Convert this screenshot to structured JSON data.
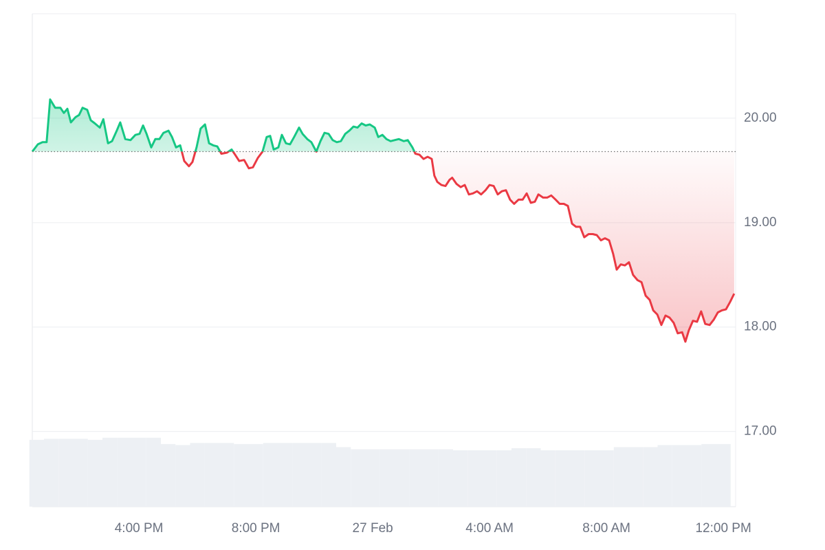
{
  "chart_data": {
    "type": "price",
    "baseline": 19.68,
    "up_color": "#16c784",
    "down_color": "#ea3943",
    "volume_color": "#edf0f4",
    "grid": true,
    "xlim": [
      12.35,
      36.42
    ],
    "ylim": [
      16.28,
      21.0
    ],
    "xticks": [
      {
        "value": 16,
        "label": "4:00 PM"
      },
      {
        "value": 20,
        "label": "8:00 PM"
      },
      {
        "value": 24,
        "label": "27 Feb"
      },
      {
        "value": 28,
        "label": "4:00 AM"
      },
      {
        "value": 32,
        "label": "8:00 AM"
      },
      {
        "value": 36,
        "label": "12:00 PM"
      }
    ],
    "yticks": [
      {
        "value": 17,
        "label": "17.00"
      },
      {
        "value": 18,
        "label": "18.00"
      },
      {
        "value": 19,
        "label": "19.00"
      },
      {
        "value": 20,
        "label": "20.00"
      }
    ],
    "x": [
      12.35,
      12.54,
      12.7,
      12.84,
      12.96,
      13.13,
      13.31,
      13.43,
      13.55,
      13.67,
      13.83,
      13.95,
      14.07,
      14.23,
      14.35,
      14.49,
      14.66,
      14.78,
      14.94,
      15.08,
      15.24,
      15.36,
      15.53,
      15.71,
      15.88,
      16.02,
      16.14,
      16.26,
      16.42,
      16.56,
      16.7,
      16.84,
      17.01,
      17.13,
      17.27,
      17.41,
      17.55,
      17.71,
      17.83,
      17.97,
      18.11,
      18.26,
      18.4,
      18.54,
      18.68,
      18.82,
      19.01,
      19.17,
      19.29,
      19.43,
      19.6,
      19.76,
      19.9,
      20.07,
      20.23,
      20.37,
      20.49,
      20.61,
      20.77,
      20.89,
      21.03,
      21.17,
      21.31,
      21.48,
      21.6,
      21.76,
      21.9,
      22.07,
      22.21,
      22.35,
      22.49,
      22.63,
      22.77,
      22.91,
      23.06,
      23.2,
      23.34,
      23.48,
      23.62,
      23.76,
      23.9,
      24.07,
      24.19,
      24.33,
      24.47,
      24.61,
      24.75,
      24.89,
      25.06,
      25.2,
      25.36,
      25.46,
      25.6,
      25.74,
      25.88,
      26.02,
      26.11,
      26.21,
      26.35,
      26.49,
      26.63,
      26.72,
      26.87,
      27.01,
      27.15,
      27.29,
      27.43,
      27.57,
      27.71,
      27.86,
      28.0,
      28.14,
      28.28,
      28.42,
      28.56,
      28.7,
      28.84,
      28.99,
      29.13,
      29.27,
      29.41,
      29.55,
      29.67,
      29.83,
      29.97,
      30.11,
      30.26,
      30.4,
      30.54,
      30.68,
      30.82,
      30.96,
      31.1,
      31.24,
      31.39,
      31.53,
      31.67,
      31.81,
      31.95,
      32.09,
      32.23,
      32.35,
      32.49,
      32.63,
      32.77,
      32.91,
      33.06,
      33.2,
      33.34,
      33.48,
      33.6,
      33.74,
      33.88,
      34.02,
      34.16,
      34.3,
      34.44,
      34.59,
      34.7,
      34.82,
      34.96,
      35.1,
      35.24,
      35.38,
      35.53,
      35.67,
      35.81,
      35.95,
      36.09,
      36.23,
      36.37
    ],
    "values": [
      19.68,
      19.75,
      19.77,
      19.77,
      20.18,
      20.1,
      20.1,
      20.05,
      20.09,
      19.96,
      20.01,
      20.03,
      20.1,
      20.08,
      19.98,
      19.95,
      19.91,
      19.99,
      19.76,
      19.78,
      19.88,
      19.96,
      19.8,
      19.79,
      19.84,
      19.85,
      19.93,
      19.85,
      19.72,
      19.8,
      19.8,
      19.86,
      19.88,
      19.82,
      19.72,
      19.74,
      19.59,
      19.54,
      19.58,
      19.72,
      19.9,
      19.94,
      19.76,
      19.74,
      19.73,
      19.66,
      19.67,
      19.7,
      19.65,
      19.59,
      19.6,
      19.52,
      19.53,
      19.62,
      19.68,
      19.82,
      19.83,
      19.7,
      19.72,
      19.84,
      19.76,
      19.75,
      19.82,
      19.91,
      19.85,
      19.8,
      19.77,
      19.68,
      19.78,
      19.86,
      19.85,
      19.79,
      19.77,
      19.78,
      19.85,
      19.88,
      19.92,
      19.91,
      19.95,
      19.93,
      19.94,
      19.91,
      19.82,
      19.84,
      19.8,
      19.78,
      19.79,
      19.8,
      19.78,
      19.79,
      19.72,
      19.66,
      19.65,
      19.61,
      19.63,
      19.61,
      19.45,
      19.39,
      19.36,
      19.35,
      19.41,
      19.43,
      19.37,
      19.34,
      19.36,
      19.27,
      19.28,
      19.3,
      19.27,
      19.31,
      19.36,
      19.35,
      19.27,
      19.3,
      19.31,
      19.22,
      19.18,
      19.22,
      19.22,
      19.28,
      19.19,
      19.2,
      19.27,
      19.24,
      19.24,
      19.26,
      19.22,
      19.18,
      19.18,
      19.16,
      18.99,
      18.96,
      18.96,
      18.86,
      18.89,
      18.89,
      18.88,
      18.83,
      18.85,
      18.83,
      18.7,
      18.55,
      18.6,
      18.59,
      18.62,
      18.5,
      18.45,
      18.43,
      18.3,
      18.26,
      18.16,
      18.12,
      18.02,
      18.11,
      18.09,
      18.04,
      17.94,
      17.95,
      17.86,
      17.97,
      18.06,
      18.05,
      18.15,
      18.03,
      18.02,
      18.07,
      18.14,
      18.16,
      18.17,
      18.24,
      18.32
    ],
    "volume": {
      "x": [
        12.5,
        13.0,
        13.5,
        14.0,
        14.5,
        15.0,
        15.5,
        16.0,
        16.5,
        17.0,
        17.5,
        18.0,
        18.5,
        19.0,
        19.5,
        20.0,
        20.5,
        21.0,
        21.5,
        22.0,
        22.5,
        23.0,
        23.5,
        24.0,
        24.5,
        25.0,
        25.5,
        26.0,
        26.5,
        27.0,
        27.5,
        28.0,
        28.5,
        29.0,
        29.5,
        30.0,
        30.5,
        31.0,
        31.5,
        32.0,
        32.5,
        33.0,
        33.5,
        34.0,
        34.5,
        35.0,
        35.5,
        36.0
      ],
      "values": [
        0.64,
        0.65,
        0.65,
        0.65,
        0.64,
        0.66,
        0.66,
        0.66,
        0.66,
        0.6,
        0.59,
        0.61,
        0.61,
        0.61,
        0.6,
        0.6,
        0.61,
        0.61,
        0.61,
        0.61,
        0.61,
        0.57,
        0.55,
        0.55,
        0.55,
        0.55,
        0.55,
        0.55,
        0.55,
        0.54,
        0.54,
        0.54,
        0.54,
        0.56,
        0.56,
        0.54,
        0.54,
        0.54,
        0.54,
        0.54,
        0.57,
        0.57,
        0.57,
        0.59,
        0.59,
        0.59,
        0.6,
        0.6
      ]
    }
  }
}
